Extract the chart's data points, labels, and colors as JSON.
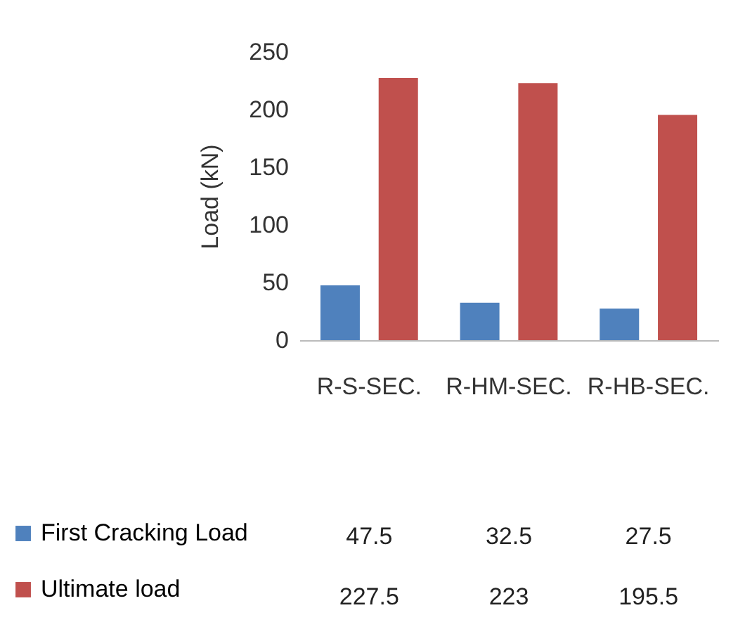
{
  "chart_data": {
    "type": "bar",
    "categories": [
      "R-S-SEC.",
      "R-HM-SEC.",
      "R-HB-SEC."
    ],
    "ylabel": "Load (kN)",
    "ylim": [
      0,
      250
    ],
    "yticks": [
      0,
      50,
      100,
      150,
      200,
      250
    ],
    "data_labels": true,
    "legend": "bottom left",
    "series": [
      {
        "name": "First Cracking Load",
        "color": "#4f81bd",
        "values": [
          47.5,
          32.5,
          27.5
        ]
      },
      {
        "name": "Ultimate load",
        "color": "#c0504d",
        "values": [
          227.5,
          223,
          195.5
        ]
      }
    ]
  }
}
